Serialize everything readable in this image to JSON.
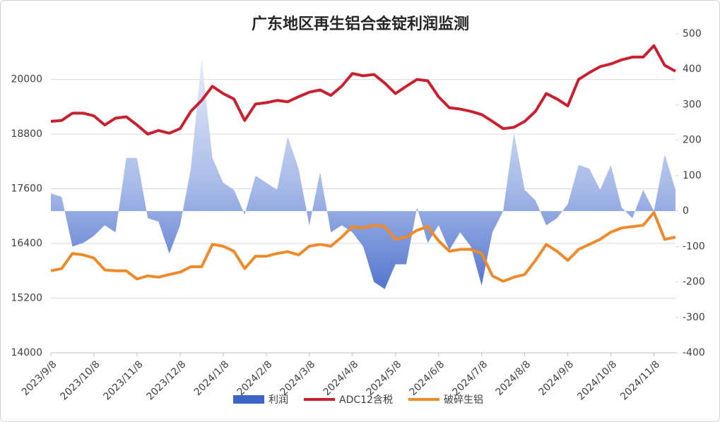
{
  "chart_data": {
    "type": "line",
    "title": "广东地区再生铝合金锭利润监测",
    "categories": [
      "2023/9/8",
      null,
      null,
      null,
      "2023/10/8",
      null,
      null,
      null,
      "2023/11/8",
      null,
      null,
      null,
      "2023/12/8",
      null,
      null,
      null,
      "2024/1/8",
      null,
      null,
      null,
      "2024/2/8",
      null,
      null,
      null,
      "2024/3/8",
      null,
      null,
      null,
      "2024/4/8",
      null,
      null,
      null,
      "2024/5/8",
      null,
      null,
      null,
      "2024/6/8",
      null,
      null,
      null,
      "2024/7/8",
      null,
      null,
      null,
      "2024/8/8",
      null,
      null,
      null,
      "2024/9/8",
      null,
      null,
      null,
      "2024/10/8",
      null,
      null,
      null,
      "2024/11/8",
      null,
      null
    ],
    "series": [
      {
        "name": "利润",
        "kind": "area",
        "axis": "y2",
        "color": "#4a6fd0",
        "values": [
          50,
          40,
          -100,
          -90,
          -70,
          -40,
          -60,
          150,
          150,
          -20,
          -30,
          -120,
          -40,
          120,
          430,
          150,
          80,
          60,
          -10,
          100,
          80,
          60,
          210,
          120,
          -40,
          110,
          -60,
          -40,
          -60,
          -100,
          -200,
          -220,
          -150,
          -150,
          10,
          -90,
          -40,
          -110,
          -60,
          -100,
          -210,
          -60,
          0,
          220,
          60,
          30,
          -40,
          -20,
          20,
          130,
          120,
          60,
          130,
          10,
          -20,
          60,
          0,
          160,
          60
        ]
      },
      {
        "name": "ADC12含税",
        "kind": "line",
        "color": "#c8202f",
        "values": [
          19080,
          19100,
          19260,
          19260,
          19200,
          19000,
          19150,
          19180,
          19000,
          18800,
          18880,
          18820,
          18920,
          19300,
          19540,
          19850,
          19690,
          19570,
          19100,
          19460,
          19490,
          19540,
          19510,
          19620,
          19720,
          19770,
          19650,
          19850,
          20130,
          20080,
          20110,
          19920,
          19690,
          19850,
          20000,
          19970,
          19620,
          19380,
          19350,
          19300,
          19230,
          19080,
          18920,
          18950,
          19080,
          19300,
          19690,
          19570,
          19420,
          20000,
          20150,
          20280,
          20340,
          20430,
          20490,
          20490,
          20740,
          20310,
          20180
        ]
      },
      {
        "name": "破碎生铝",
        "kind": "line",
        "color": "#ee8a2a",
        "values": [
          15800,
          15850,
          16180,
          16150,
          16080,
          15820,
          15800,
          15800,
          15620,
          15690,
          15660,
          15720,
          15770,
          15890,
          15890,
          16380,
          16340,
          16230,
          15850,
          16120,
          16120,
          16180,
          16220,
          16150,
          16340,
          16380,
          16340,
          16540,
          16770,
          16740,
          16800,
          16770,
          16490,
          16540,
          16690,
          16770,
          16460,
          16230,
          16270,
          16270,
          16180,
          15690,
          15570,
          15660,
          15720,
          16030,
          16380,
          16230,
          16030,
          16270,
          16380,
          16490,
          16650,
          16740,
          16770,
          16800,
          17080,
          16490,
          16540
        ]
      }
    ],
    "ylim": [
      14000,
      21000
    ],
    "yticks": [
      14000,
      15200,
      16400,
      17600,
      18800,
      20000
    ],
    "y2lim": [
      -400,
      500
    ],
    "y2ticks": [
      -400,
      -300,
      -200,
      -100,
      0,
      100,
      200,
      300,
      400,
      500
    ],
    "grid": true,
    "legend": "bottom"
  }
}
